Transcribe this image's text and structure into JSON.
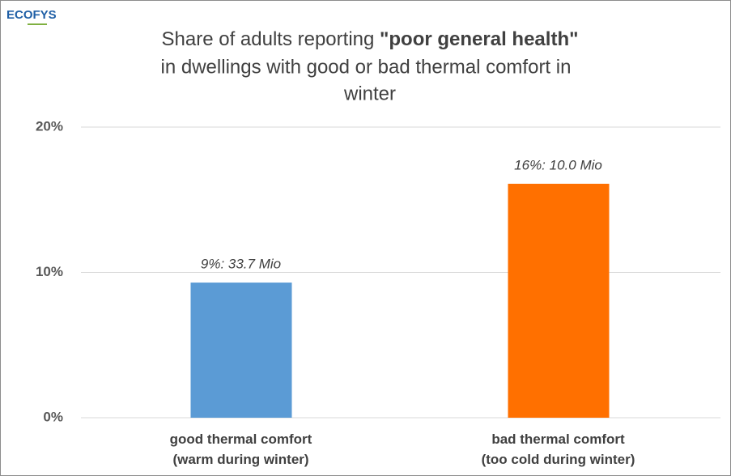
{
  "chart_data": {
    "type": "bar",
    "logo": "ECOFYS",
    "title": [
      "Share of adults reporting",
      "\"poor general health\"",
      "in dwellings with good or bad thermal comfort in",
      "winter"
    ],
    "categories": [
      [
        "good thermal comfort",
        "(warm during winter)"
      ],
      [
        "bad thermal comfort",
        "(too cold during winter)"
      ]
    ],
    "values": [
      9.3,
      16.1
    ],
    "value_labels": [
      "9%: 33.7 Mio",
      "16%: 10.0 Mio"
    ],
    "colors": [
      "#5b9bd5",
      "#ff7000"
    ],
    "ylim": [
      0,
      20
    ],
    "yticks": [
      {
        "value": 0,
        "label": "0%"
      },
      {
        "value": 10,
        "label": "10%"
      },
      {
        "value": 20,
        "label": "20%"
      }
    ],
    "grid": true
  }
}
